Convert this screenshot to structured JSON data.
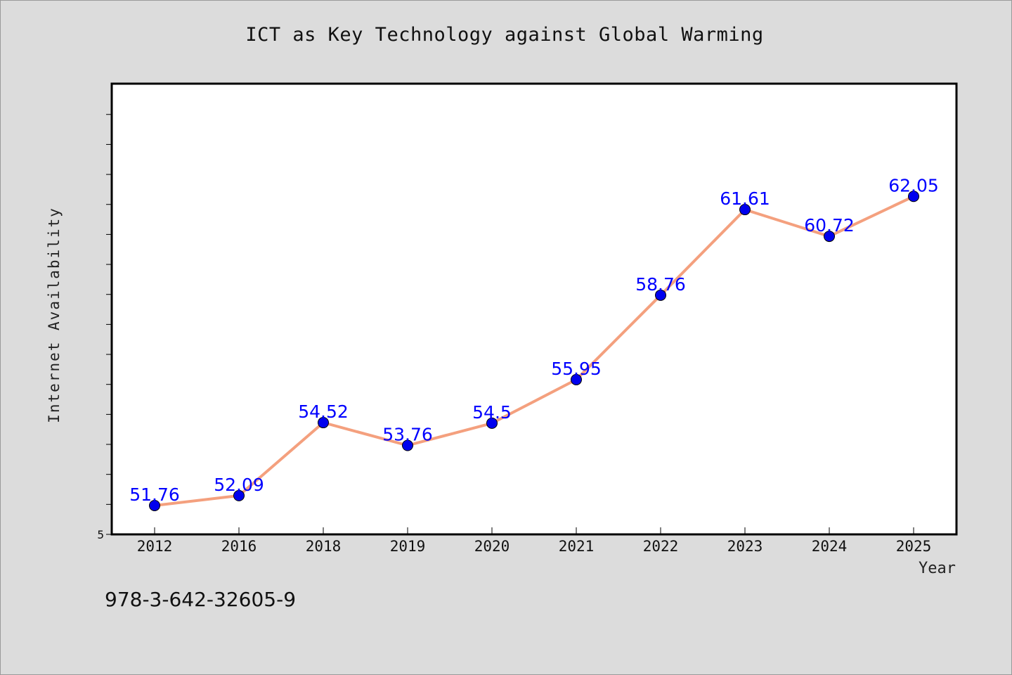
{
  "chart_data": {
    "type": "line",
    "title": "ICT as Key Technology against Global Warming",
    "xlabel": "Year",
    "ylabel": "Internet Availability",
    "categories": [
      "2012",
      "2016",
      "2018",
      "2019",
      "2020",
      "2021",
      "2022",
      "2023",
      "2024",
      "2025"
    ],
    "series": [
      {
        "values": [
          51.76,
          52.09,
          54.52,
          53.76,
          54.5,
          55.95,
          58.76,
          61.61,
          60.72,
          62.05
        ],
        "data_labels": [
          "51.76",
          "52.09",
          "54.52",
          "53.76",
          "54.5",
          "55.95",
          "58.76",
          "61.61",
          "60.72",
          "62.05"
        ]
      }
    ],
    "y_tick_labels": [
      "5"
    ],
    "ylim": [
      50.8,
      65.8
    ],
    "grid": false,
    "line_color": "#f4a07e",
    "marker_color": "#0000ee",
    "label_color": "#0000ff"
  },
  "footer_code": "978-3-642-32605-9"
}
